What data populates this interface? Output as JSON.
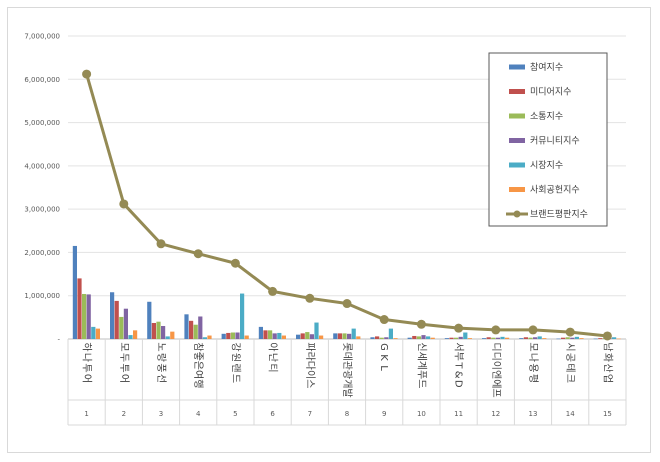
{
  "chart_data": {
    "type": "bar",
    "title": "",
    "xlabel": "",
    "ylabel": "",
    "ylim": [
      0,
      7000000
    ],
    "yticks": [
      0,
      1000000,
      2000000,
      3000000,
      4000000,
      5000000,
      6000000,
      7000000
    ],
    "ytick_labels": [
      "-",
      "1,000,000",
      "2,000,000",
      "3,000,000",
      "4,000,000",
      "5,000,000",
      "6,000,000",
      "7,000,000"
    ],
    "grid": true,
    "legend_position": "right",
    "categories": [
      "하나투어",
      "모두투어",
      "노랑풍선",
      "참좋은여행",
      "강원랜드",
      "아난티",
      "파라다이스",
      "롯데관광개발",
      "GKL",
      "신세계푸드",
      "서부T&D",
      "디디이엔에프",
      "모나용평",
      "시공테크",
      "남화산업"
    ],
    "x_numbers": [
      "1",
      "2",
      "3",
      "4",
      "5",
      "6",
      "7",
      "8",
      "9",
      "10",
      "11",
      "12",
      "13",
      "14",
      "15"
    ],
    "series": [
      {
        "name": "참여지수",
        "type": "bar",
        "color": "#4f81bd",
        "values": [
          2150000,
          1080000,
          860000,
          570000,
          120000,
          280000,
          100000,
          130000,
          40000,
          30000,
          20000,
          20000,
          20000,
          10000,
          10000
        ]
      },
      {
        "name": "미디어지수",
        "type": "bar",
        "color": "#c0504d",
        "values": [
          1400000,
          880000,
          370000,
          420000,
          140000,
          200000,
          130000,
          130000,
          60000,
          70000,
          30000,
          40000,
          40000,
          30000,
          20000
        ]
      },
      {
        "name": "소통지수",
        "type": "bar",
        "color": "#9bbb59",
        "values": [
          1040000,
          510000,
          400000,
          330000,
          150000,
          200000,
          160000,
          130000,
          30000,
          60000,
          30000,
          30000,
          30000,
          40000,
          20000
        ]
      },
      {
        "name": "커뮤니티지수",
        "type": "bar",
        "color": "#8064a2",
        "values": [
          1030000,
          700000,
          300000,
          520000,
          150000,
          130000,
          110000,
          120000,
          40000,
          90000,
          50000,
          30000,
          40000,
          30000,
          20000
        ]
      },
      {
        "name": "시장지수",
        "type": "bar",
        "color": "#4bacc6",
        "values": [
          280000,
          90000,
          60000,
          40000,
          1050000,
          140000,
          380000,
          240000,
          240000,
          60000,
          150000,
          50000,
          60000,
          50000,
          40000
        ]
      },
      {
        "name": "사회공헌지수",
        "type": "bar",
        "color": "#f79646",
        "values": [
          240000,
          200000,
          170000,
          80000,
          80000,
          80000,
          80000,
          60000,
          20000,
          30000,
          20000,
          30000,
          20000,
          20000,
          10000
        ]
      },
      {
        "name": "브랜드평판지수",
        "type": "line",
        "color": "#948a54",
        "values": [
          6120000,
          3120000,
          2200000,
          1970000,
          1750000,
          1100000,
          940000,
          820000,
          450000,
          340000,
          250000,
          210000,
          210000,
          160000,
          70000
        ]
      }
    ]
  }
}
